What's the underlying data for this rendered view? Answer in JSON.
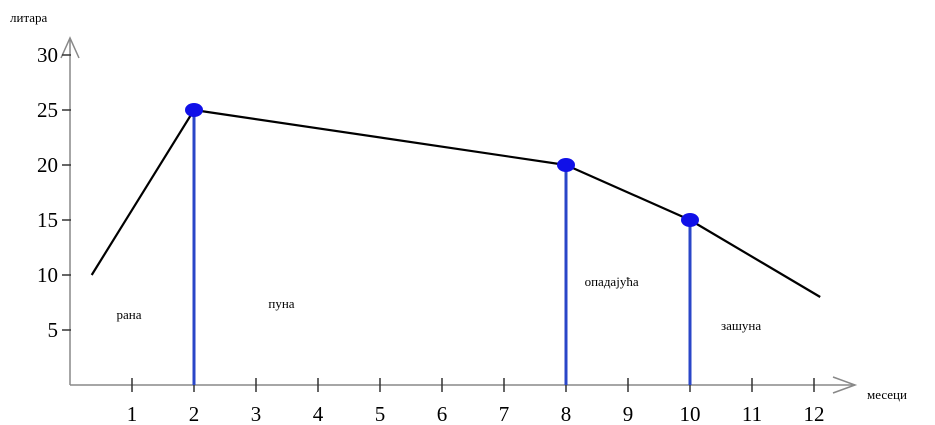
{
  "chart_data": {
    "type": "line",
    "title": "",
    "xlabel": "месеци",
    "ylabel": "литара",
    "xlim": [
      0,
      13.5
    ],
    "ylim": [
      0,
      33
    ],
    "x_ticks": [
      1,
      2,
      3,
      4,
      5,
      6,
      7,
      8,
      9,
      10,
      11,
      12
    ],
    "y_ticks": [
      5,
      10,
      15,
      20,
      25,
      30
    ],
    "grid": false,
    "series": [
      {
        "x": [
          0.35,
          2,
          8,
          10,
          12.1
        ],
        "y": [
          10,
          25,
          20,
          15,
          8
        ],
        "color": "#000000"
      }
    ],
    "markers": [
      {
        "x": 2,
        "y": 25
      },
      {
        "x": 8,
        "y": 20
      },
      {
        "x": 10,
        "y": 15
      }
    ],
    "marker_color": "#1010e8",
    "vertical_lines": [
      {
        "x": 2,
        "y": 25
      },
      {
        "x": 8,
        "y": 20
      },
      {
        "x": 10,
        "y": 15
      }
    ],
    "vline_color": "#2a46c8",
    "annotations": [
      {
        "text": "рана",
        "x": 0.75,
        "y": 6
      },
      {
        "text": "пуна",
        "x": 3.2,
        "y": 7
      },
      {
        "text": "опадајућа",
        "x": 8.3,
        "y": 9
      },
      {
        "text": "зашуна",
        "x": 10.5,
        "y": 5
      }
    ]
  }
}
